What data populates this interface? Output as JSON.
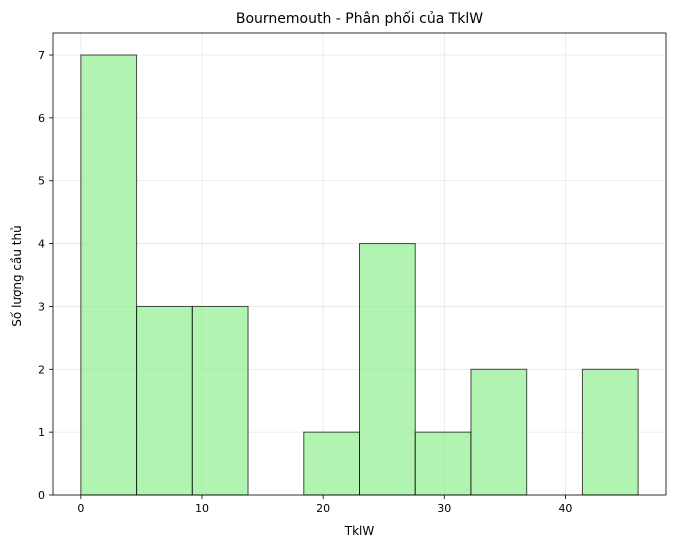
{
  "chart_data": {
    "type": "bar",
    "title": "Bournemouth - Phân phối của TklW",
    "xlabel": "TklW",
    "ylabel": "Số lượng cầu thủ",
    "bin_edges": [
      0,
      4.6,
      9.2,
      13.8,
      18.4,
      23.0,
      27.6,
      32.2,
      36.8,
      41.4,
      46.0
    ],
    "values": [
      7,
      3,
      3,
      0,
      1,
      4,
      1,
      2,
      0,
      2
    ],
    "xlim": [
      -2.3,
      48.3
    ],
    "ylim": [
      0,
      7.35
    ],
    "xticks": [
      0,
      10,
      20,
      30,
      40
    ],
    "yticks": [
      0,
      1,
      2,
      3,
      4,
      5,
      6,
      7
    ],
    "grid": true,
    "bar_color": "#90EE90",
    "edge_color": "#000000"
  }
}
